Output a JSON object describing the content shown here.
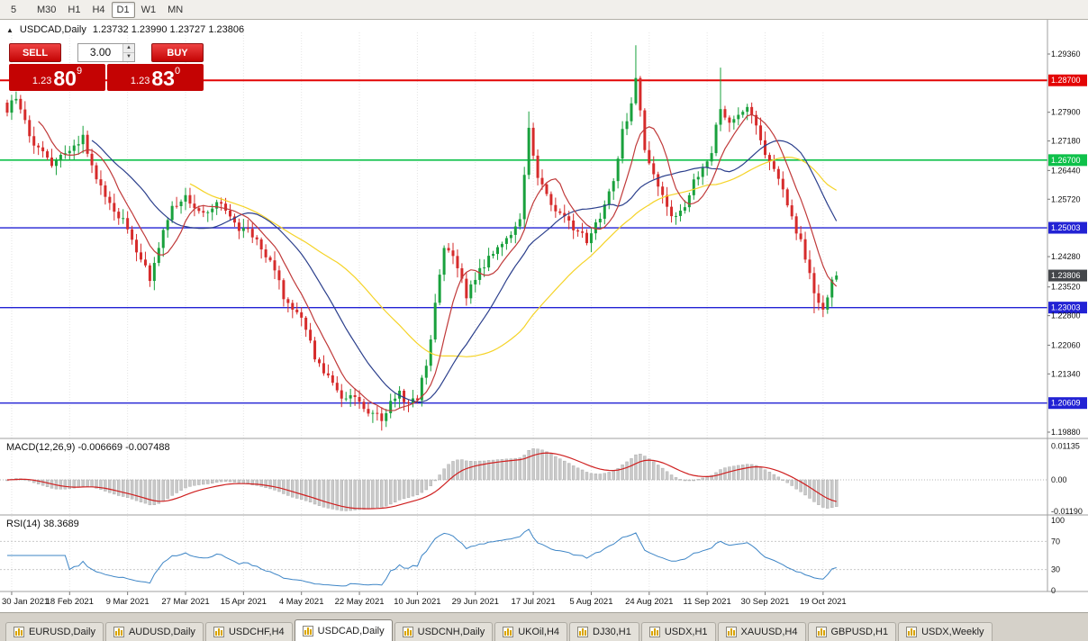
{
  "toolbar": {
    "timeframes": [
      {
        "label": "5",
        "active": false
      },
      {
        "label": "M30",
        "active": false
      },
      {
        "label": "H1",
        "active": false
      },
      {
        "label": "H4",
        "active": false
      },
      {
        "label": "D1",
        "active": true
      },
      {
        "label": "W1",
        "active": false
      },
      {
        "label": "MN",
        "active": false
      }
    ]
  },
  "chart_header": {
    "expand_icon": "▲",
    "symbol": "USDCAD,Daily",
    "ohlc": "1.23732 1.23990 1.23727 1.23806"
  },
  "trade_panel": {
    "sell_label": "SELL",
    "buy_label": "BUY",
    "volume": "3.00",
    "sell_price_small": "1.23",
    "sell_price_big": "80",
    "sell_price_sup": "9",
    "buy_price_small": "1.23",
    "buy_price_big": "83",
    "buy_price_sup": "0"
  },
  "indicators": {
    "macd_label": "MACD(12,26,9) -0.006669 -0.007488",
    "rsi_label": "RSI(14) 38.3689"
  },
  "tabs": [
    {
      "label": "EURUSD,Daily",
      "active": false
    },
    {
      "label": "AUDUSD,Daily",
      "active": false
    },
    {
      "label": "USDCHF,H4",
      "active": false
    },
    {
      "label": "USDCAD,Daily",
      "active": true
    },
    {
      "label": "USDCNH,Daily",
      "active": false
    },
    {
      "label": "UKOil,H4",
      "active": false
    },
    {
      "label": "DJ30,H1",
      "active": false
    },
    {
      "label": "USDX,H1",
      "active": false
    },
    {
      "label": "XAUUSD,H4",
      "active": false
    },
    {
      "label": "GBPUSD,H1",
      "active": false
    },
    {
      "label": "USDX,Weekly",
      "active": false
    }
  ],
  "chart_data": {
    "type": "candlestick",
    "symbol": "USDCAD",
    "timeframe": "Daily",
    "last_close": 1.23806,
    "open": 1.23732,
    "high": 1.2399,
    "low": 1.23727,
    "close": 1.23806,
    "x_labels": [
      "30 Jan 2021",
      "18 Feb 2021",
      "9 Mar 2021",
      "27 Mar 2021",
      "15 Apr 2021",
      "4 May 2021",
      "22 May 2021",
      "10 Jun 2021",
      "29 Jun 2021",
      "17 Jul 2021",
      "5 Aug 2021",
      "24 Aug 2021",
      "11 Sep 2021",
      "30 Sep 2021",
      "19 Oct 2021"
    ],
    "y_axis_labels": [
      {
        "text": "1.29360",
        "value": 1.2936,
        "style": "plain"
      },
      {
        "text": "1.28700",
        "value": 1.287,
        "style": "line-red"
      },
      {
        "text": "1.27900",
        "value": 1.279,
        "style": "plain"
      },
      {
        "text": "1.27180",
        "value": 1.2718,
        "style": "plain"
      },
      {
        "text": "1.26700",
        "value": 1.267,
        "style": "line-green"
      },
      {
        "text": "1.26440",
        "value": 1.2644,
        "style": "plain"
      },
      {
        "text": "1.25720",
        "value": 1.2572,
        "style": "plain"
      },
      {
        "text": "1.25003",
        "value": 1.25003,
        "style": "line-blue"
      },
      {
        "text": "1.24280",
        "value": 1.2428,
        "style": "plain"
      },
      {
        "text": "1.23806",
        "value": 1.23806,
        "style": "current"
      },
      {
        "text": "1.23520",
        "value": 1.2352,
        "style": "plain"
      },
      {
        "text": "1.23003",
        "value": 1.23003,
        "style": "line-blue"
      },
      {
        "text": "1.22800",
        "value": 1.228,
        "style": "plain"
      },
      {
        "text": "1.22060",
        "value": 1.2206,
        "style": "plain"
      },
      {
        "text": "1.21340",
        "value": 1.2134,
        "style": "plain"
      },
      {
        "text": "1.20609",
        "value": 1.20609,
        "style": "line-blue"
      },
      {
        "text": "1.19880",
        "value": 1.1988,
        "style": "plain"
      }
    ],
    "horizontal_levels": [
      {
        "value": 1.287,
        "color_role": "resistance-red"
      },
      {
        "value": 1.267,
        "color_role": "level-green"
      },
      {
        "value": 1.25003,
        "color_role": "level-blue"
      },
      {
        "value": 1.23003,
        "color_role": "level-blue"
      },
      {
        "value": 1.20609,
        "color_role": "level-blue"
      }
    ],
    "candle_count": 187,
    "seed": 97,
    "noise": 0.0011,
    "price_anchors": [
      [
        0,
        1.28
      ],
      [
        2,
        1.2828
      ],
      [
        6,
        1.2705
      ],
      [
        10,
        1.2662
      ],
      [
        14,
        1.27
      ],
      [
        17,
        1.2728
      ],
      [
        20,
        1.2622
      ],
      [
        24,
        1.255
      ],
      [
        27,
        1.2498
      ],
      [
        30,
        1.2425
      ],
      [
        32,
        1.2368
      ],
      [
        34,
        1.2452
      ],
      [
        37,
        1.2558
      ],
      [
        40,
        1.2572
      ],
      [
        44,
        1.2545
      ],
      [
        48,
        1.2562
      ],
      [
        52,
        1.2502
      ],
      [
        56,
        1.2478
      ],
      [
        60,
        1.2388
      ],
      [
        63,
        1.2302
      ],
      [
        66,
        1.2268
      ],
      [
        69,
        1.2178
      ],
      [
        72,
        1.2122
      ],
      [
        75,
        1.2082
      ],
      [
        78,
        1.2068
      ],
      [
        81,
        1.2042
      ],
      [
        84,
        1.2022
      ],
      [
        86,
        1.2068
      ],
      [
        88,
        1.2082
      ],
      [
        90,
        1.2058
      ],
      [
        92,
        1.2078
      ],
      [
        94,
        1.2158
      ],
      [
        96,
        1.2302
      ],
      [
        98,
        1.2458
      ],
      [
        100,
        1.2438
      ],
      [
        103,
        1.2328
      ],
      [
        106,
        1.2392
      ],
      [
        109,
        1.2438
      ],
      [
        112,
        1.2468
      ],
      [
        115,
        1.2518
      ],
      [
        117,
        1.2748
      ],
      [
        119,
        1.2622
      ],
      [
        122,
        1.2562
      ],
      [
        126,
        1.2508
      ],
      [
        130,
        1.2472
      ],
      [
        133,
        1.2532
      ],
      [
        136,
        1.2618
      ],
      [
        138,
        1.2738
      ],
      [
        140,
        1.2818
      ],
      [
        141,
        1.2872
      ],
      [
        143,
        1.2698
      ],
      [
        146,
        1.2598
      ],
      [
        149,
        1.2532
      ],
      [
        152,
        1.2558
      ],
      [
        155,
        1.2638
      ],
      [
        158,
        1.2692
      ],
      [
        160,
        1.2808
      ],
      [
        162,
        1.2758
      ],
      [
        164,
        1.2778
      ],
      [
        166,
        1.2806
      ],
      [
        168,
        1.2748
      ],
      [
        170,
        1.2678
      ],
      [
        173,
        1.2618
      ],
      [
        176,
        1.2528
      ],
      [
        179,
        1.2428
      ],
      [
        181,
        1.2328
      ],
      [
        183,
        1.2298
      ],
      [
        184,
        1.2332
      ],
      [
        185,
        1.2362
      ],
      [
        186,
        1.23806
      ]
    ],
    "spikes_high": [
      [
        2,
        1.2842
      ],
      [
        117,
        1.2792
      ],
      [
        141,
        1.2958
      ],
      [
        160,
        1.2902
      ]
    ],
    "spikes_low": [
      [
        32,
        1.2352
      ],
      [
        84,
        1.2008
      ],
      [
        181,
        1.2286
      ]
    ],
    "ma": [
      {
        "period": 42,
        "color": "#f5d327",
        "width": 1.2
      },
      {
        "period": 20,
        "color": "#2b3f8c",
        "width": 1.2
      },
      {
        "period": 8,
        "color": "#c03a3a",
        "width": 1.2
      }
    ],
    "colors": {
      "up": "#19a13d",
      "down": "#d62b2b",
      "line_red": "#e30505",
      "line_green": "#0ec14a",
      "line_blue": "#2222d4",
      "current_badge": "#44464a"
    },
    "macd": {
      "fast": 12,
      "slow": 26,
      "signal": 9,
      "display": "-0.006669 -0.007488",
      "histogram_color": "#c9c9c9",
      "signal_color": "#cf2020",
      "labels": [
        {
          "text": "0.01135",
          "value": 0.01135
        },
        {
          "text": "0.00",
          "value": 0
        },
        {
          "text": "-0.01190",
          "value": -0.0119
        }
      ]
    },
    "rsi": {
      "period": 14,
      "display": "38.3689",
      "color": "#3d85c6",
      "levels": [
        70,
        30
      ],
      "labels": [
        {
          "text": "100",
          "value": 100
        },
        {
          "text": "70",
          "value": 70
        },
        {
          "text": "30",
          "value": 30
        },
        {
          "text": "0",
          "value": 0
        }
      ]
    }
  }
}
